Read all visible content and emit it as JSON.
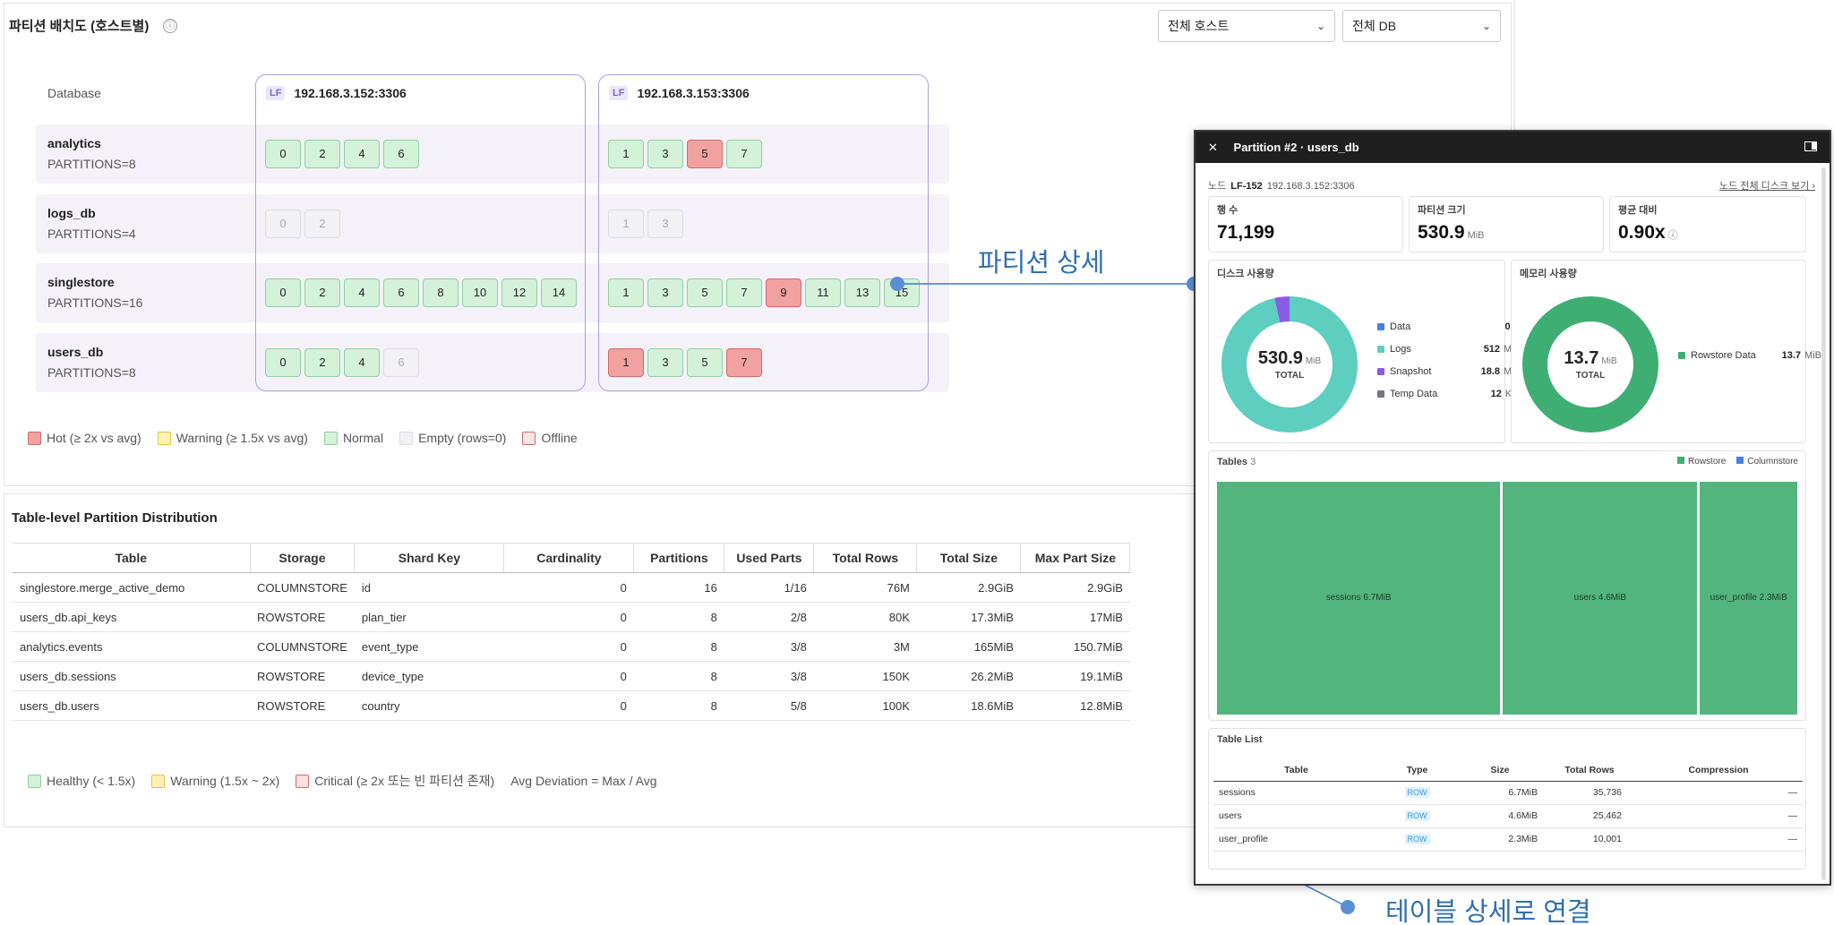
{
  "placement": {
    "title": "파티션 배치도 (호스트별)",
    "info_icon": "ⓘ",
    "host_filter": "전체 호스트",
    "db_filter": "전체 DB",
    "db_header": "Database",
    "hosts": [
      {
        "tag": "LF",
        "name": "192.168.3.152:3306"
      },
      {
        "tag": "LF",
        "name": "192.168.3.153:3306"
      }
    ],
    "databases": [
      {
        "name": "analytics",
        "partitions": "PARTITIONS=8"
      },
      {
        "name": "logs_db",
        "partitions": "PARTITIONS=4"
      },
      {
        "name": "singlestore",
        "partitions": "PARTITIONS=16"
      },
      {
        "name": "users_db",
        "partitions": "PARTITIONS=8"
      }
    ],
    "cells": [
      [
        [
          {
            "n": "0",
            "s": "normal"
          },
          {
            "n": "2",
            "s": "normal"
          },
          {
            "n": "4",
            "s": "normal"
          },
          {
            "n": "6",
            "s": "normal"
          }
        ],
        [
          {
            "n": "1",
            "s": "normal"
          },
          {
            "n": "3",
            "s": "normal"
          },
          {
            "n": "5",
            "s": "hot"
          },
          {
            "n": "7",
            "s": "normal"
          }
        ]
      ],
      [
        [
          {
            "n": "0",
            "s": "empty"
          },
          {
            "n": "2",
            "s": "empty"
          }
        ],
        [
          {
            "n": "1",
            "s": "empty"
          },
          {
            "n": "3",
            "s": "empty"
          }
        ]
      ],
      [
        [
          {
            "n": "0",
            "s": "normal"
          },
          {
            "n": "2",
            "s": "normal"
          },
          {
            "n": "4",
            "s": "normal"
          },
          {
            "n": "6",
            "s": "normal"
          },
          {
            "n": "8",
            "s": "normal"
          },
          {
            "n": "10",
            "s": "normal"
          },
          {
            "n": "12",
            "s": "normal"
          },
          {
            "n": "14",
            "s": "normal"
          }
        ],
        [
          {
            "n": "1",
            "s": "normal"
          },
          {
            "n": "3",
            "s": "normal"
          },
          {
            "n": "5",
            "s": "normal"
          },
          {
            "n": "7",
            "s": "normal"
          },
          {
            "n": "9",
            "s": "hot"
          },
          {
            "n": "11",
            "s": "normal"
          },
          {
            "n": "13",
            "s": "normal"
          },
          {
            "n": "15",
            "s": "normal"
          }
        ]
      ],
      [
        [
          {
            "n": "0",
            "s": "normal"
          },
          {
            "n": "2",
            "s": "normal"
          },
          {
            "n": "4",
            "s": "normal"
          },
          {
            "n": "6",
            "s": "empty"
          }
        ],
        [
          {
            "n": "1",
            "s": "hot"
          },
          {
            "n": "3",
            "s": "normal"
          },
          {
            "n": "5",
            "s": "normal"
          },
          {
            "n": "7",
            "s": "hot"
          }
        ]
      ]
    ],
    "legend": [
      {
        "label": "Hot (≥ 2x vs avg)",
        "color": "#f2a1a1",
        "border": "#d46a6a"
      },
      {
        "label": "Warning (≥ 1.5x vs avg)",
        "color": "#fff2b3",
        "border": "#e0c34a"
      },
      {
        "label": "Normal",
        "color": "#d4f1da",
        "border": "#8fd09e"
      },
      {
        "label": "Empty (rows=0)",
        "color": "#f2f2f4",
        "border": "#dedee2"
      },
      {
        "label": "Offline",
        "color": "#fde5e5",
        "border": "#d46a6a"
      }
    ]
  },
  "distribution": {
    "title": "Table-level Partition Distribution",
    "columns": [
      "Table",
      "Storage",
      "Shard Key",
      "Cardinality",
      "Partitions",
      "Used Parts",
      "Total Rows",
      "Total Size",
      "Max Part Size"
    ],
    "rows": [
      [
        "singlestore.merge_active_demo",
        "COLUMNSTORE",
        "id",
        "0",
        "16",
        "1/16",
        "76M",
        "2.9GiB",
        "2.9GiB"
      ],
      [
        "users_db.api_keys",
        "ROWSTORE",
        "plan_tier",
        "0",
        "8",
        "2/8",
        "80K",
        "17.3MiB",
        "17MiB"
      ],
      [
        "analytics.events",
        "COLUMNSTORE",
        "event_type",
        "0",
        "8",
        "3/8",
        "3M",
        "165MiB",
        "150.7MiB"
      ],
      [
        "users_db.sessions",
        "ROWSTORE",
        "device_type",
        "0",
        "8",
        "3/8",
        "150K",
        "26.2MiB",
        "19.1MiB"
      ],
      [
        "users_db.users",
        "ROWSTORE",
        "country",
        "0",
        "8",
        "5/8",
        "100K",
        "18.6MiB",
        "12.8MiB"
      ]
    ],
    "legend": [
      {
        "label": "Healthy (< 1.5x)",
        "color": "#d4f1da",
        "border": "#8fd09e"
      },
      {
        "label": "Warning (1.5x ~ 2x)",
        "color": "#fff2b3",
        "border": "#e0c34a"
      },
      {
        "label": "Critical (≥ 2x 또는 빈 파티션 존재)",
        "color": "#fde0e0",
        "border": "#d46a6a"
      }
    ],
    "avg_note": "Avg Deviation = Max / Avg"
  },
  "detail": {
    "close_icon": "✕",
    "title": "Partition #2 · users_db",
    "node_label": "노드",
    "node_name": "LF-152",
    "node_addr": "192.168.3.152:3306",
    "node_link": "노드 전체 디스크 보기 ›",
    "stats": [
      {
        "label": "행 수",
        "value": "71,199",
        "unit": ""
      },
      {
        "label": "파티션 크기",
        "value": "530.9",
        "unit": "MiB"
      },
      {
        "label": "평균 대비",
        "value": "0.90x",
        "unit": "ⓘ"
      }
    ],
    "disk": {
      "title": "디스크 사용량",
      "total": "530.9",
      "unit": "MiB",
      "total_label": "TOTAL",
      "items": [
        {
          "label": "Data",
          "value": "0",
          "unit": "B",
          "color": "#4a7fe0",
          "amount": 0
        },
        {
          "label": "Logs",
          "value": "512",
          "unit": "MiB",
          "color": "#5dcec0",
          "amount": 512
        },
        {
          "label": "Snapshot",
          "value": "18.8",
          "unit": "MiB",
          "color": "#8a5ce6",
          "amount": 18.8
        },
        {
          "label": "Temp Data",
          "value": "12",
          "unit": "KiB",
          "color": "#707785",
          "amount": 0.012
        }
      ]
    },
    "memory": {
      "title": "메모리 사용량",
      "total": "13.7",
      "unit": "MiB",
      "total_label": "TOTAL",
      "items": [
        {
          "label": "Rowstore Data",
          "value": "13.7",
          "unit": "MiB",
          "color": "#3fae72",
          "amount": 13.7
        }
      ]
    },
    "tables": {
      "title": "Tables",
      "count": "3",
      "legend": [
        {
          "label": "Rowstore",
          "color": "#3fae72"
        },
        {
          "label": "Columnstore",
          "color": "#4a7fe0"
        }
      ],
      "treemap": [
        {
          "label": "sessions 6.7MiB",
          "size": 6.7
        },
        {
          "label": "users 4.6MiB",
          "size": 4.6
        },
        {
          "label": "user_profile 2.3MiB",
          "size": 2.3
        }
      ]
    },
    "table_list": {
      "title": "Table List",
      "columns": [
        "Table",
        "Type",
        "Size",
        "Total Rows",
        "Compression"
      ],
      "rows": [
        [
          "sessions",
          "ROW",
          "6.7MiB",
          "35,736",
          "—"
        ],
        [
          "users",
          "ROW",
          "4.6MiB",
          "25,462",
          "—"
        ],
        [
          "user_profile",
          "ROW",
          "2.3MiB",
          "10,001",
          "—"
        ]
      ]
    }
  },
  "callouts": {
    "partition_detail": "파티션 상세",
    "table_link": "테이블 상세로 연결"
  }
}
